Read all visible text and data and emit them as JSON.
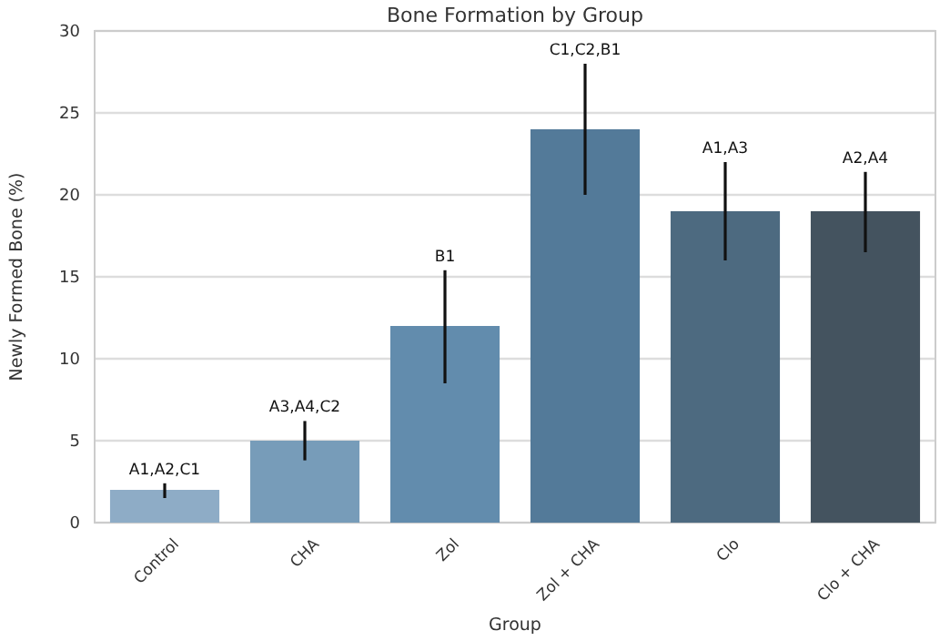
{
  "chart_data": {
    "type": "bar",
    "title": "Bone Formation by Group",
    "xlabel": "Group",
    "ylabel": "Newly Formed Bone (%)",
    "categories": [
      "Control",
      "CHA",
      "Zol",
      "Zol + CHA",
      "Clo",
      "Clo + CHA"
    ],
    "values": [
      2,
      5,
      12,
      24,
      19,
      19
    ],
    "colors": [
      "#8eacc6",
      "#779cb9",
      "#628cad",
      "#537a99",
      "#4d6a80",
      "#44535f"
    ],
    "errors": [
      [
        1.5,
        2.4
      ],
      [
        3.8,
        6.2
      ],
      [
        8.5,
        15.4
      ],
      [
        20,
        28
      ],
      [
        16,
        22
      ],
      [
        16.5,
        21.4
      ]
    ],
    "annotations": [
      {
        "text": "A1,A2,C1",
        "x": "Control",
        "y": 2.4
      },
      {
        "text": "A3,A4,C2",
        "x": "CHA",
        "y": 6.2
      },
      {
        "text": "B1",
        "x": "Zol",
        "y": 15.4
      },
      {
        "text": "C1,C2,B1",
        "x": "Zol + CHA",
        "y": 28
      },
      {
        "text": "A1,A3",
        "x": "Clo",
        "y": 22
      },
      {
        "text": "A2,A4",
        "x": "Clo + CHA",
        "y": 21.4
      }
    ],
    "ylim": [
      0,
      30
    ],
    "yticks": [
      0,
      5,
      10,
      15,
      20,
      25,
      30
    ],
    "grid": "y"
  }
}
